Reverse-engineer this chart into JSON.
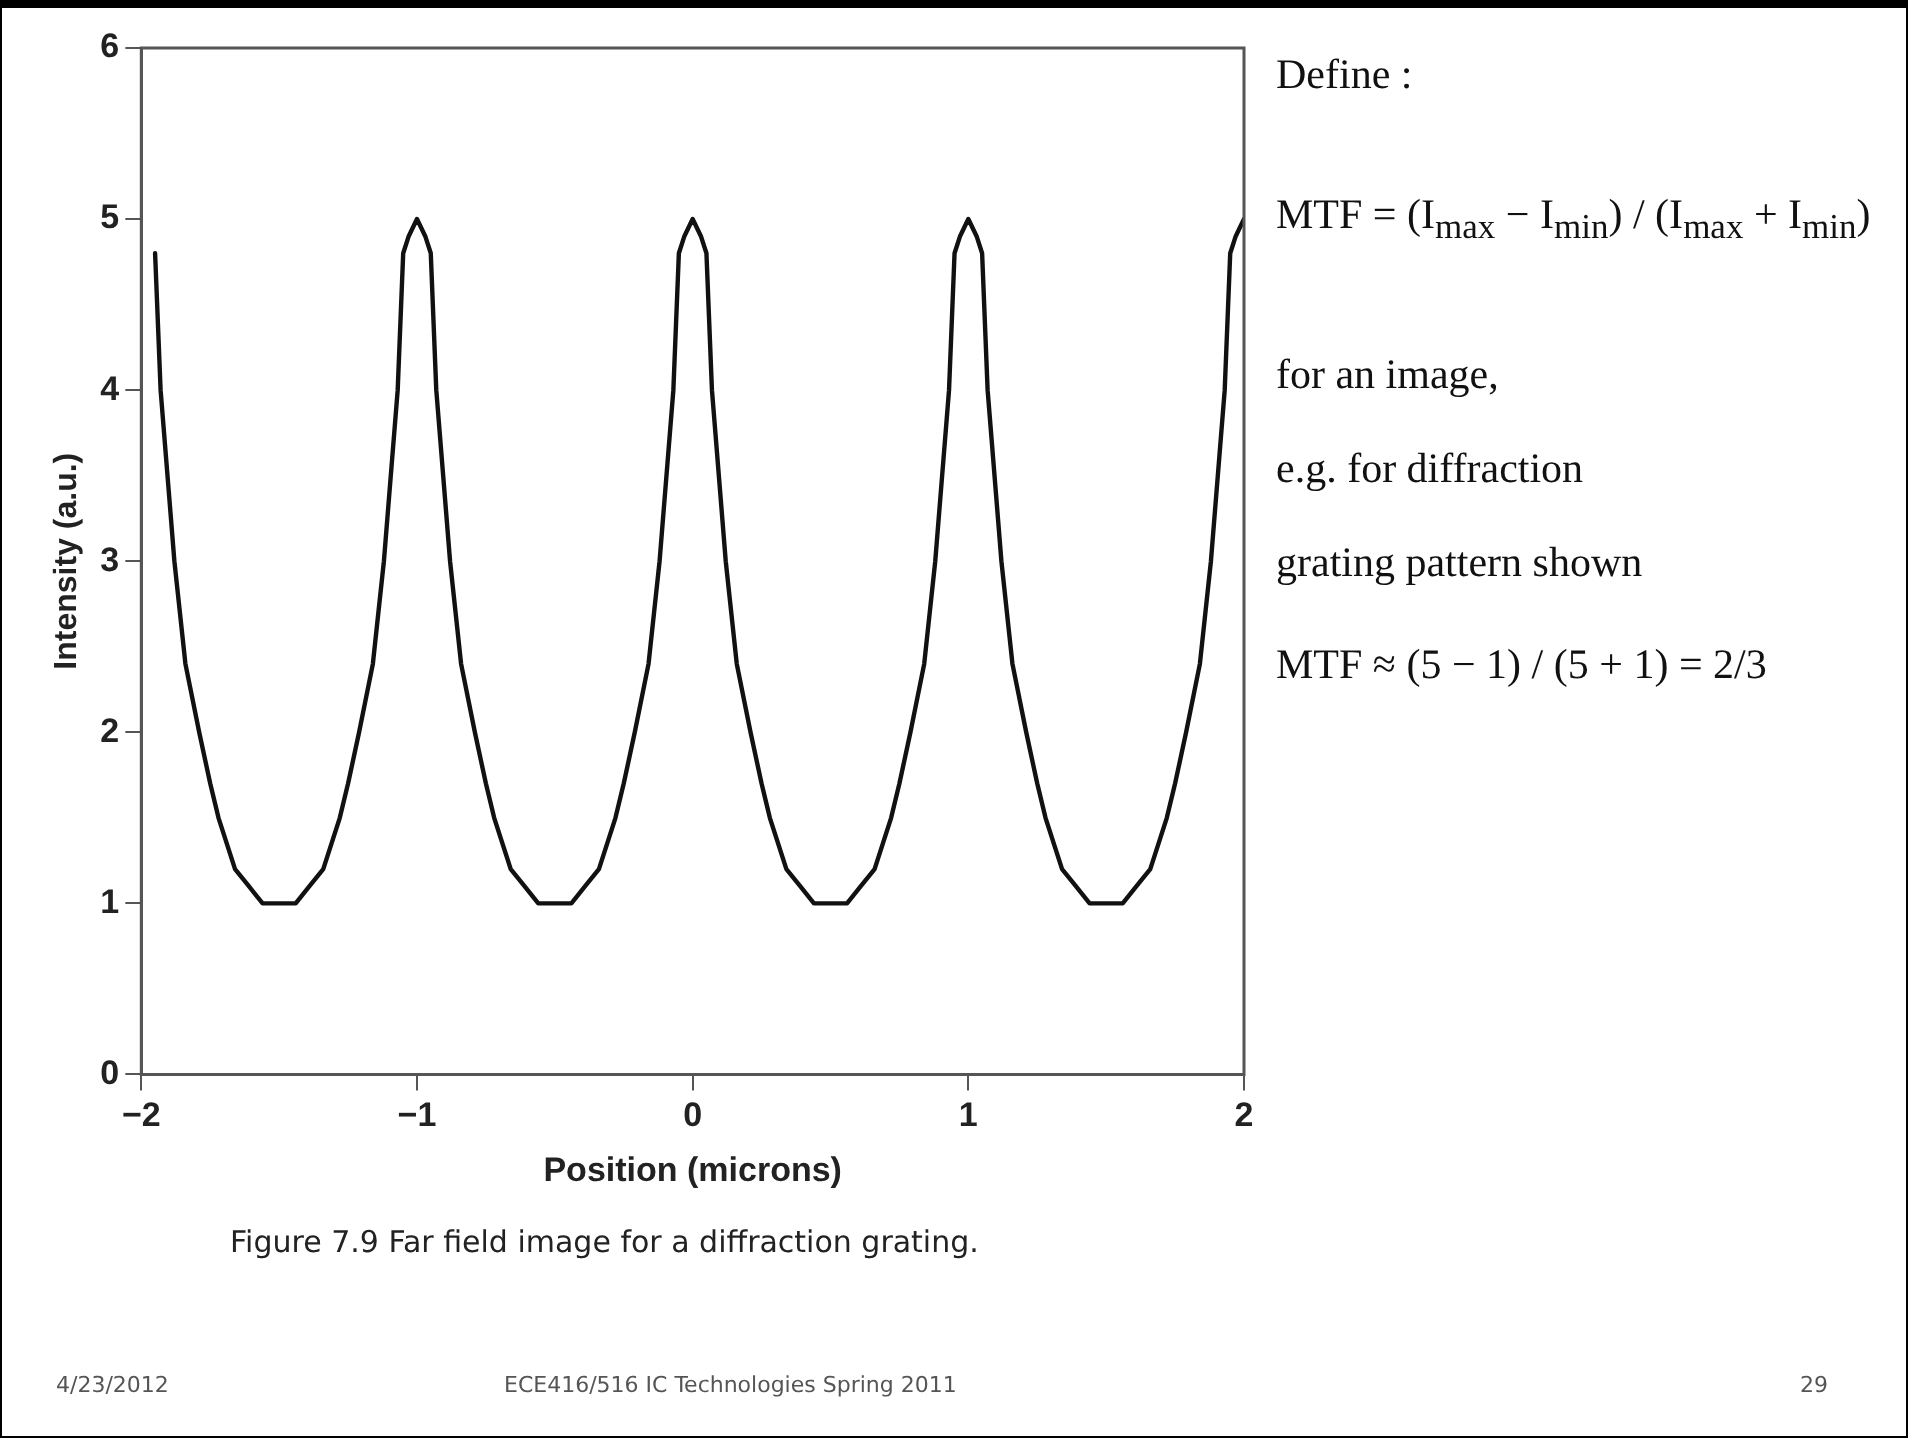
{
  "chart_data": {
    "type": "line",
    "xlabel": "Position (microns)",
    "ylabel": "Intensity (a.u.)",
    "xlim": [
      -2,
      2
    ],
    "xticks": [
      {
        "value": -2,
        "label": "−2"
      },
      {
        "value": -1,
        "label": "−1"
      },
      0,
      1,
      2
    ],
    "ylim": [
      0,
      6
    ],
    "yticks": [
      0,
      1,
      2,
      3,
      4,
      5,
      6
    ],
    "grid": false,
    "legend": false,
    "marker": "none",
    "line_style": "solid",
    "series": [
      {
        "color": "#111111",
        "x": [
          -1.95,
          -1.93,
          -1.88,
          -1.84,
          -1.79,
          -1.75,
          -1.72,
          -1.66,
          -1.61,
          -1.56,
          -1.44,
          -1.39,
          -1.34,
          -1.28,
          -1.25,
          -1.21,
          -1.16,
          -1.12,
          -1.07,
          -1.05,
          -1.03,
          -1,
          -0.97,
          -0.95,
          -0.93,
          -0.88,
          -0.84,
          -0.79,
          -0.75,
          -0.72,
          -0.66,
          -0.61,
          -0.56,
          -0.44,
          -0.39,
          -0.34,
          -0.28,
          -0.25,
          -0.21,
          -0.16,
          -0.12,
          -0.07,
          -0.05,
          -0.03,
          0,
          0.03,
          0.05,
          0.07,
          0.12,
          0.16,
          0.21,
          0.25,
          0.28,
          0.34,
          0.39,
          0.44,
          0.56,
          0.61,
          0.66,
          0.72,
          0.75,
          0.79,
          0.84,
          0.88,
          0.93,
          0.95,
          0.97,
          1,
          1.03,
          1.05,
          1.07,
          1.12,
          1.16,
          1.21,
          1.25,
          1.28,
          1.34,
          1.39,
          1.44,
          1.56,
          1.61,
          1.66,
          1.72,
          1.75,
          1.79,
          1.84,
          1.88,
          1.93,
          1.95,
          1.97,
          2
        ],
        "values": [
          4.8,
          4,
          3,
          2.4,
          2,
          1.7,
          1.5,
          1.2,
          1.1,
          1,
          1,
          1.1,
          1.2,
          1.5,
          1.7,
          2,
          2.4,
          3,
          4,
          4.8,
          4.9,
          5,
          4.9,
          4.8,
          4,
          3,
          2.4,
          2,
          1.7,
          1.5,
          1.2,
          1.1,
          1,
          1,
          1.1,
          1.2,
          1.5,
          1.7,
          2,
          2.4,
          3,
          4,
          4.8,
          4.9,
          5,
          4.9,
          4.8,
          4,
          3,
          2.4,
          2,
          1.7,
          1.5,
          1.2,
          1.1,
          1,
          1,
          1.1,
          1.2,
          1.5,
          1.7,
          2,
          2.4,
          3,
          4,
          4.8,
          4.9,
          5,
          4.9,
          4.8,
          4,
          3,
          2.4,
          2,
          1.7,
          1.5,
          1.2,
          1.1,
          1,
          1,
          1.1,
          1.2,
          1.5,
          1.7,
          2,
          2.4,
          3,
          4,
          4.8,
          4.9,
          5
        ]
      }
    ],
    "annotations": [
      "Define :",
      "MTF = (I$_{max}$ − I$_{min}$) / (I$_{max}$ + I$_{min}$)",
      "for an image,",
      "e.g. for diffraction",
      "grating pattern shown",
      "MTF ≈ (5 − 1) / (5 + 1) = 2/3",
      "Figure 7.9  Far field image for a diffraction grating.",
      "4/23/2012",
      "ECE416/516 IC Technologies Spring 2011",
      "29"
    ]
  }
}
